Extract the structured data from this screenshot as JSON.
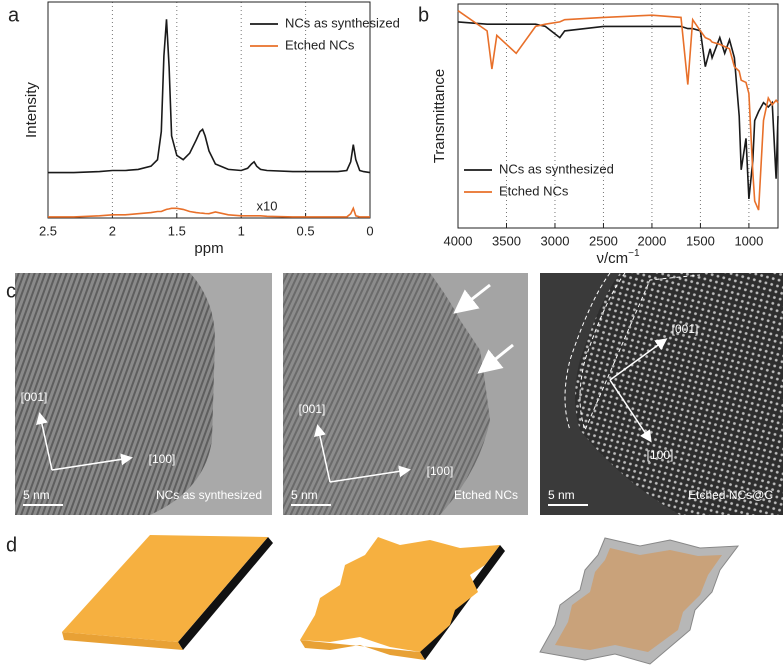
{
  "chart_data": [
    {
      "type": "line",
      "panel": "a",
      "ylabel": "Intensity",
      "xlabel": "ppm",
      "xlim": [
        2.5,
        0
      ],
      "ylim": [
        0,
        100
      ],
      "xticks": [
        2.5,
        2,
        1.5,
        1,
        0.5,
        0
      ],
      "grid": true,
      "legend": "upper right",
      "annotation": "x10",
      "x": [
        2.5,
        2.3,
        2.1,
        2.0,
        1.9,
        1.8,
        1.7,
        1.65,
        1.62,
        1.6,
        1.58,
        1.56,
        1.54,
        1.5,
        1.45,
        1.4,
        1.35,
        1.32,
        1.3,
        1.28,
        1.25,
        1.2,
        1.1,
        1.0,
        0.95,
        0.92,
        0.9,
        0.88,
        0.85,
        0.8,
        0.6,
        0.4,
        0.25,
        0.18,
        0.15,
        0.13,
        0.11,
        0.08,
        0.05,
        0
      ],
      "series": [
        {
          "name": "NCs as synthesized",
          "color": "#1a1a1a",
          "values": [
            21,
            21,
            21.5,
            22,
            22,
            22.5,
            24,
            27,
            40,
            75,
            92,
            70,
            38,
            29,
            27,
            30,
            36,
            40,
            41,
            38,
            31,
            25,
            22.5,
            22,
            23,
            25,
            26,
            24,
            22.5,
            22,
            21.5,
            21.5,
            21.5,
            22,
            26,
            34,
            27,
            22,
            21.5,
            21
          ]
        },
        {
          "name": "Etched NCs",
          "color": "#e8702a",
          "values": [
            0.5,
            0.5,
            1,
            1.5,
            1.5,
            2,
            2.5,
            3,
            3,
            3.5,
            4,
            4.2,
            4.5,
            4.5,
            4,
            3,
            2.5,
            2.3,
            2.2,
            2.1,
            2,
            2.8,
            1.5,
            1,
            1,
            1,
            1,
            1,
            1,
            0.8,
            0.5,
            0.5,
            0.5,
            0.5,
            2,
            4.5,
            1,
            0.5,
            0.5,
            0.5
          ]
        }
      ]
    },
    {
      "type": "line",
      "panel": "b",
      "ylabel": "Transmittance",
      "xlabel": {
        "text": "ν/cm",
        "sup": "−1"
      },
      "xlim": [
        4000,
        700
      ],
      "ylim": [
        0,
        100
      ],
      "xticks": [
        4000,
        3500,
        3000,
        2500,
        2000,
        1500,
        1000
      ],
      "grid": true,
      "legend": "lower left",
      "x": [
        4000,
        3700,
        3650,
        3600,
        3400,
        3200,
        3100,
        2950,
        2900,
        2500,
        2000,
        1700,
        1630,
        1580,
        1500,
        1450,
        1400,
        1380,
        1300,
        1250,
        1200,
        1150,
        1100,
        1080,
        1030,
        1000,
        960,
        940,
        900,
        850,
        800,
        760,
        720,
        700
      ],
      "series": [
        {
          "name": "NCs as synthesized",
          "color": "#1a1a1a",
          "values": [
            92,
            91,
            91,
            91,
            91,
            91,
            90,
            85,
            88,
            90,
            90,
            90,
            89,
            89,
            88,
            72,
            80,
            76,
            85,
            78,
            84,
            76,
            50,
            26,
            40,
            13,
            30,
            48,
            52,
            56,
            54,
            56,
            22,
            50
          ]
        },
        {
          "name": "Etched NCs",
          "color": "#e8702a",
          "values": [
            97,
            88,
            71,
            86,
            78,
            90,
            91,
            92,
            93,
            94,
            95,
            94,
            64,
            93,
            88,
            85,
            84,
            83,
            82,
            81,
            80,
            72,
            70,
            66,
            65,
            60,
            25,
            12,
            8,
            48,
            58,
            55,
            57,
            56
          ]
        }
      ]
    }
  ],
  "panel_c": {
    "label": "c",
    "images": [
      {
        "axis1": "[001]",
        "axis2": "[100]",
        "scale": "5 nm",
        "caption": "NCs as synthesized"
      },
      {
        "axis1": "[001]",
        "axis2": "[100]",
        "scale": "5 nm",
        "caption": "Etched NCs"
      },
      {
        "axis1": "[001]",
        "axis2": "[100]",
        "scale": "5 nm",
        "caption": "Etched NCs@C"
      }
    ]
  },
  "panel_d": {
    "label": "d"
  }
}
